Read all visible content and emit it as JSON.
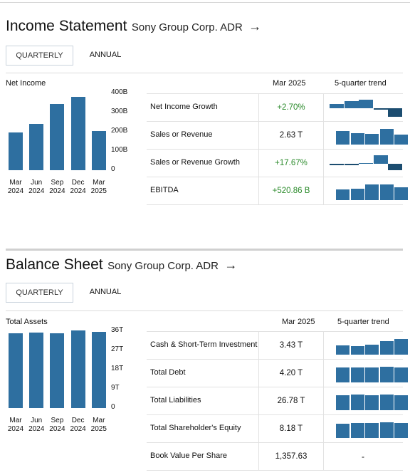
{
  "income": {
    "title": "Income Statement",
    "company": "Sony Group Corp. ADR",
    "arrow": "→",
    "tab_quarterly": "QUARTERLY",
    "tab_annual": "ANNUAL",
    "chart_label": "Net Income",
    "y_ticks": [
      "400B",
      "300B",
      "200B",
      "100B",
      "0"
    ],
    "x_ticks": [
      [
        "Mar",
        "2024"
      ],
      [
        "Jun",
        "2024"
      ],
      [
        "Sep",
        "2024"
      ],
      [
        "Dec",
        "2024"
      ],
      [
        "Mar",
        "2025"
      ]
    ],
    "col_period": "Mar 2025",
    "col_trend": "5-quarter trend",
    "rows": [
      {
        "label": "Net Income Growth",
        "value": "+2.70%"
      },
      {
        "label": "Sales or Revenue",
        "value": "2.63 T"
      },
      {
        "label": "Sales or Revenue Growth",
        "value": "+17.67%"
      },
      {
        "label": "EBITDA",
        "value": "+520.86 B"
      }
    ]
  },
  "balance": {
    "title": "Balance Sheet",
    "company": "Sony Group Corp. ADR",
    "arrow": "→",
    "tab_quarterly": "QUARTERLY",
    "tab_annual": "ANNUAL",
    "chart_label": "Total Assets",
    "y_ticks": [
      "36T",
      "27T",
      "18T",
      "9T",
      "0"
    ],
    "x_ticks": [
      [
        "Mar",
        "2024"
      ],
      [
        "Jun",
        "2024"
      ],
      [
        "Sep",
        "2024"
      ],
      [
        "Dec",
        "2024"
      ],
      [
        "Mar",
        "2025"
      ]
    ],
    "col_period": "Mar 2025",
    "col_trend": "5-quarter trend",
    "rows": [
      {
        "label": "Cash & Short-Term Investment",
        "value": "3.43 T"
      },
      {
        "label": "Total Debt",
        "value": "4.20 T"
      },
      {
        "label": "Total Liabilities",
        "value": "26.78 T"
      },
      {
        "label": "Total Shareholder's Equity",
        "value": "8.18 T"
      },
      {
        "label": "Book Value Per Share",
        "value": "1,357.63",
        "trend": "-"
      }
    ]
  },
  "chart_data": [
    {
      "type": "bar",
      "title": "Net Income",
      "categories": [
        "Mar 2024",
        "Jun 2024",
        "Sep 2024",
        "Dec 2024",
        "Mar 2025"
      ],
      "values": [
        195,
        240,
        345,
        380,
        205
      ],
      "unit": "B",
      "ylim": [
        0,
        400
      ]
    },
    {
      "type": "bar",
      "title": "Total Assets",
      "categories": [
        "Mar 2024",
        "Jun 2024",
        "Sep 2024",
        "Dec 2024",
        "Mar 2025"
      ],
      "values": [
        35.0,
        35.3,
        35.0,
        36.3,
        35.8
      ],
      "unit": "T",
      "ylim": [
        0,
        36
      ]
    }
  ],
  "trends": {
    "income": [
      {
        "values": [
          0.5,
          0.8,
          1.0,
          -0.2,
          -1.0
        ]
      },
      {
        "values": [
          0.85,
          0.75,
          0.7,
          1.0,
          0.65
        ]
      },
      {
        "values": [
          -0.15,
          -0.08,
          0.0,
          1.0,
          -0.75
        ]
      },
      {
        "values": [
          0.7,
          0.75,
          1.0,
          1.0,
          0.8
        ]
      }
    ],
    "balance": [
      {
        "values": [
          0.6,
          0.55,
          0.65,
          0.85,
          1.0
        ]
      },
      {
        "values": [
          0.95,
          0.97,
          0.97,
          1.0,
          0.97
        ]
      },
      {
        "values": [
          0.95,
          0.98,
          0.96,
          1.0,
          0.97
        ]
      },
      {
        "values": [
          0.93,
          0.97,
          0.95,
          1.0,
          0.96
        ]
      }
    ]
  },
  "colors": {
    "bar": "#2e6fa0",
    "bar_negative": "#1c4d70",
    "positive": "#2a8a2a"
  }
}
